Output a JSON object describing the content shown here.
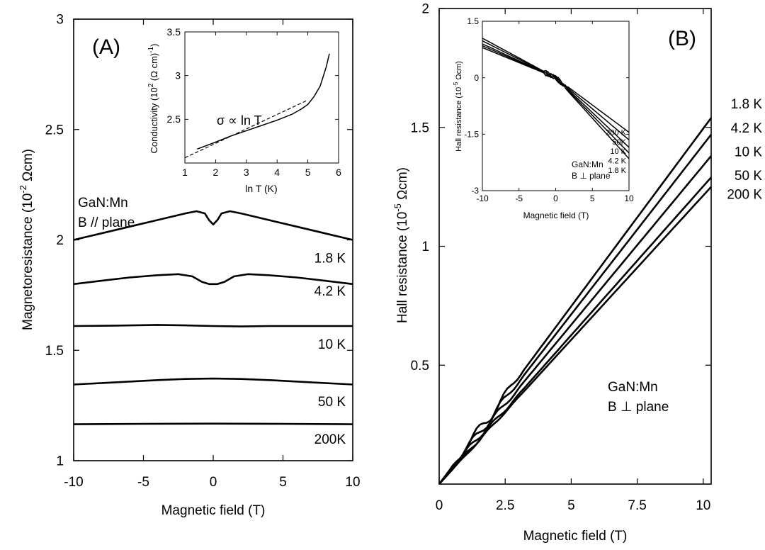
{
  "chart_data": [
    {
      "panel": "(A)",
      "type": "line",
      "xlabel": "Magnetic field (T)",
      "ylabel": "Magnetoresistance (10",
      "ylabel_sup": "-2",
      "ylabel_unit": " Ωcm)",
      "xlim": [
        -10,
        10
      ],
      "ylim": [
        1,
        3
      ],
      "xticks": [
        "-10",
        "-5",
        "0",
        "5",
        "10"
      ],
      "xtick_values": [
        -10,
        -5,
        0,
        5,
        10
      ],
      "yticks": [
        "1",
        "1.5",
        "2",
        "2.5",
        "3"
      ],
      "ytick_values": [
        1,
        1.5,
        2,
        2.5,
        3
      ],
      "annotation_lines": [
        "GaN:Mn",
        "B // plane"
      ],
      "series": [
        {
          "name": "1.8 K",
          "label_y": 1.92,
          "points": [
            [
              -10,
              2.0
            ],
            [
              -8,
              2.03
            ],
            [
              -6,
              2.06
            ],
            [
              -4,
              2.09
            ],
            [
              -2,
              2.12
            ],
            [
              -1.2,
              2.13
            ],
            [
              -0.6,
              2.12
            ],
            [
              -0.3,
              2.09
            ],
            [
              0,
              2.07
            ],
            [
              0.3,
              2.09
            ],
            [
              0.6,
              2.12
            ],
            [
              1.2,
              2.13
            ],
            [
              2,
              2.12
            ],
            [
              4,
              2.09
            ],
            [
              6,
              2.06
            ],
            [
              8,
              2.03
            ],
            [
              10,
              2.0
            ]
          ]
        },
        {
          "name": "4.2 K",
          "label_y": 1.77,
          "points": [
            [
              -10,
              1.8
            ],
            [
              -8,
              1.815
            ],
            [
              -6,
              1.83
            ],
            [
              -4,
              1.84
            ],
            [
              -2.5,
              1.845
            ],
            [
              -1.5,
              1.835
            ],
            [
              -0.8,
              1.81
            ],
            [
              -0.3,
              1.8
            ],
            [
              0,
              1.8
            ],
            [
              0.3,
              1.8
            ],
            [
              0.8,
              1.81
            ],
            [
              1.5,
              1.835
            ],
            [
              2.5,
              1.845
            ],
            [
              4,
              1.84
            ],
            [
              6,
              1.83
            ],
            [
              8,
              1.815
            ],
            [
              10,
              1.8
            ]
          ]
        },
        {
          "name": "10 K",
          "label_y": 1.53,
          "points": [
            [
              -10,
              1.61
            ],
            [
              -7,
              1.612
            ],
            [
              -4,
              1.615
            ],
            [
              -2,
              1.613
            ],
            [
              0,
              1.61
            ],
            [
              2,
              1.608
            ],
            [
              4,
              1.61
            ],
            [
              7,
              1.61
            ],
            [
              10,
              1.61
            ]
          ]
        },
        {
          "name": "50 K",
          "label_y": 1.27,
          "points": [
            [
              -10,
              1.345
            ],
            [
              -7,
              1.355
            ],
            [
              -4,
              1.365
            ],
            [
              -2,
              1.37
            ],
            [
              0,
              1.372
            ],
            [
              2,
              1.37
            ],
            [
              4,
              1.365
            ],
            [
              7,
              1.355
            ],
            [
              10,
              1.345
            ]
          ]
        },
        {
          "name": "200K",
          "label_y": 1.1,
          "points": [
            [
              -10,
              1.165
            ],
            [
              -5,
              1.167
            ],
            [
              0,
              1.168
            ],
            [
              5,
              1.167
            ],
            [
              10,
              1.165
            ]
          ]
        }
      ],
      "inset": {
        "type": "line",
        "xlabel": "ln T  (K)",
        "ylabel": "Conductivity (10",
        "ylabel_sup1": "2",
        "ylabel_mid": " (Ω cm)",
        "ylabel_sup2": "-1",
        "ylabel_end": ")",
        "xlim": [
          1,
          6
        ],
        "ylim": [
          2,
          3.5
        ],
        "xticks": [
          "1",
          "2",
          "3",
          "4",
          "5",
          "6"
        ],
        "xtick_values": [
          1,
          2,
          3,
          4,
          5,
          6
        ],
        "yticks": [
          "2.5",
          "3",
          "3.5"
        ],
        "ytick_values": [
          2.5,
          3,
          3.5
        ],
        "annotation": "σ  ∝  ln T",
        "series": [
          {
            "name": "data",
            "points": [
              [
                1.4,
                2.16
              ],
              [
                2,
                2.24
              ],
              [
                2.5,
                2.31
              ],
              [
                3,
                2.37
              ],
              [
                3.5,
                2.43
              ],
              [
                4,
                2.49
              ],
              [
                4.5,
                2.56
              ],
              [
                4.8,
                2.62
              ],
              [
                5.0,
                2.67
              ],
              [
                5.2,
                2.76
              ],
              [
                5.4,
                2.88
              ],
              [
                5.6,
                3.1
              ],
              [
                5.7,
                3.25
              ]
            ]
          },
          {
            "name": "fit",
            "style": "dashed",
            "points": [
              [
                1,
                2.06
              ],
              [
                5,
                2.72
              ]
            ]
          }
        ]
      }
    },
    {
      "panel": "(B)",
      "type": "line",
      "xlabel": "Magnetic field (T)",
      "ylabel": "Hall resistance (10",
      "ylabel_sup": "-5",
      "ylabel_unit": " Ωcm)",
      "xlim": [
        0,
        10.3
      ],
      "ylim": [
        0,
        2
      ],
      "xticks": [
        "0",
        "2.5",
        "5",
        "7.5",
        "10"
      ],
      "xtick_values": [
        0,
        2.5,
        5,
        7.5,
        10
      ],
      "yticks": [
        "0.5",
        "1",
        "1.5",
        "2"
      ],
      "ytick_values": [
        0.5,
        1,
        1.5,
        2
      ],
      "annotation_lines": [
        "GaN:Mn",
        "B ⊥ plane"
      ],
      "series": [
        {
          "name": "1.8 K",
          "label_y": 1.6,
          "end": 1.54,
          "wiggle": 1.0
        },
        {
          "name": "4.2 K",
          "label_y": 1.5,
          "end": 1.47,
          "wiggle": 0.8
        },
        {
          "name": "10 K",
          "label_y": 1.4,
          "end": 1.38,
          "wiggle": 0.6
        },
        {
          "name": "50 K",
          "label_y": 1.3,
          "end": 1.29,
          "wiggle": 0.4
        },
        {
          "name": "200 K",
          "label_y": 1.22,
          "end": 1.25,
          "wiggle": 0.2
        }
      ],
      "inset": {
        "type": "line",
        "xlabel": "Magnetic field (T)",
        "ylabel": "Hall resistance (10",
        "ylabel_sup": "-5",
        "ylabel_unit": " Ωcm)",
        "xlim": [
          -10,
          10
        ],
        "ylim": [
          -3,
          1.5
        ],
        "xticks": [
          "-10",
          "-5",
          "0",
          "5",
          "10"
        ],
        "xtick_values": [
          -10,
          -5,
          0,
          5,
          10
        ],
        "yticks": [
          "-3",
          "-1.5",
          "0",
          "1.5"
        ],
        "ytick_values": [
          -3,
          -1.5,
          0,
          1.5
        ],
        "annotation_lines": [
          "GaN:Mn",
          "B ⊥ plane"
        ],
        "series": [
          {
            "name": "200 K",
            "label_y": -1.45,
            "start": 1.05,
            "end": -1.45
          },
          {
            "name": "50K",
            "label_y": -1.7,
            "start": 0.98,
            "end": -1.65
          },
          {
            "name": "10 K",
            "label_y": -1.95,
            "start": 0.9,
            "end": -1.85
          },
          {
            "name": "4.2 K",
            "label_y": -2.2,
            "start": 0.85,
            "end": -2.0
          },
          {
            "name": "1.8 K",
            "label_y": -2.45,
            "start": 0.8,
            "end": -2.15
          }
        ]
      }
    }
  ]
}
